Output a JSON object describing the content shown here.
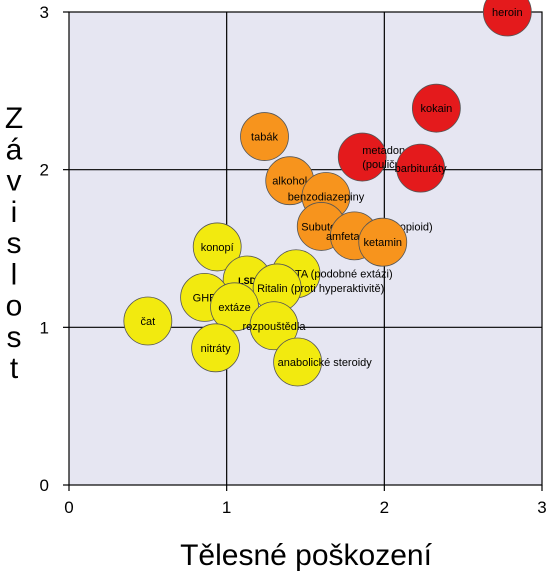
{
  "chart_data": {
    "type": "scatter",
    "xlabel": "Tělesné poškození",
    "ylabel": "Závislost",
    "xlim": [
      0,
      3
    ],
    "ylim": [
      0,
      3
    ],
    "xticks": [
      "0",
      "1",
      "2",
      "3"
    ],
    "yticks": [
      "0",
      "1",
      "2",
      "3"
    ],
    "grid": true,
    "plot_background": "#e6e6f2",
    "colors": {
      "red": "#e41a1c",
      "orange": "#f7941d",
      "yellow": "#f2ea0f"
    },
    "points": [
      {
        "label": "heroin",
        "x": 2.78,
        "y": 3.0,
        "color": "red"
      },
      {
        "label": "kokain",
        "x": 2.33,
        "y": 2.39,
        "color": "red"
      },
      {
        "label": "metadon\n(pouliční)",
        "x": 1.86,
        "y": 2.08,
        "color": "red"
      },
      {
        "label": "barbituráty",
        "x": 2.23,
        "y": 2.01,
        "color": "red"
      },
      {
        "label": "tabák",
        "x": 1.24,
        "y": 2.21,
        "color": "orange"
      },
      {
        "label": "alkohol",
        "x": 1.4,
        "y": 1.93,
        "color": "orange"
      },
      {
        "label": "benzodiazepiny",
        "x": 1.63,
        "y": 1.83,
        "color": "orange"
      },
      {
        "label": "Subutex (syntetický opioid)",
        "x": 1.6,
        "y": 1.64,
        "color": "orange"
      },
      {
        "label": "amfetaminy",
        "x": 1.81,
        "y": 1.58,
        "color": "orange"
      },
      {
        "label": "ketamin",
        "x": 1.99,
        "y": 1.54,
        "color": "orange"
      },
      {
        "label": "konopí",
        "x": 0.94,
        "y": 1.51,
        "color": "yellow"
      },
      {
        "label": "4-MTA (podobné extázi)",
        "x": 1.44,
        "y": 1.34,
        "color": "yellow"
      },
      {
        "label": "LSD",
        "x": 1.13,
        "y": 1.3,
        "color": "yellow"
      },
      {
        "label": "Ritalin (proti hyperaktivitě)",
        "x": 1.32,
        "y": 1.25,
        "color": "yellow"
      },
      {
        "label": "GHB",
        "x": 0.86,
        "y": 1.19,
        "color": "yellow"
      },
      {
        "label": "extáze",
        "x": 1.05,
        "y": 1.13,
        "color": "yellow"
      },
      {
        "label": "rozpouštědla",
        "x": 1.3,
        "y": 1.01,
        "color": "yellow"
      },
      {
        "label": "čat",
        "x": 0.5,
        "y": 1.04,
        "color": "yellow"
      },
      {
        "label": "nitráty",
        "x": 0.93,
        "y": 0.87,
        "color": "yellow"
      },
      {
        "label": "anabolické steroidy",
        "x": 1.45,
        "y": 0.78,
        "color": "yellow"
      }
    ]
  }
}
